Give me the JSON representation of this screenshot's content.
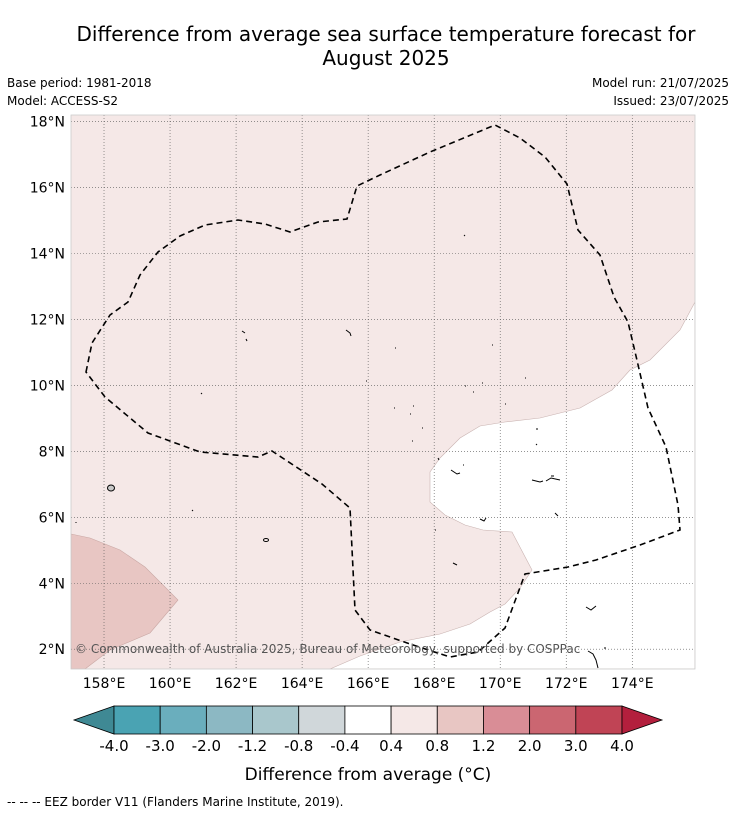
{
  "title": "Difference from average sea surface temperature forecast for August 2025",
  "title_lines": [
    "Difference from average sea surface temperature forecast for",
    "August 2025"
  ],
  "meta": {
    "base_period": "Base period: 1981-2018",
    "model": "Model: ACCESS-S2",
    "model_run": "Model run: 21/07/2025",
    "issued": "Issued: 23/07/2025"
  },
  "map": {
    "lon_range": [
      157,
      175.9
    ],
    "lat_range": [
      1.4,
      18.2
    ],
    "lat_ticks": [
      {
        "value": 18,
        "label": "18°N"
      },
      {
        "value": 16,
        "label": "16°N"
      },
      {
        "value": 14,
        "label": "14°N"
      },
      {
        "value": 12,
        "label": "12°N"
      },
      {
        "value": 10,
        "label": "10°N"
      },
      {
        "value": 8,
        "label": "8°N"
      },
      {
        "value": 6,
        "label": "6°N"
      },
      {
        "value": 4,
        "label": "4°N"
      },
      {
        "value": 2,
        "label": "2°N"
      }
    ],
    "lon_ticks": [
      {
        "value": 158,
        "label": "158°E"
      },
      {
        "value": 160,
        "label": "160°E"
      },
      {
        "value": 162,
        "label": "162°E"
      },
      {
        "value": 164,
        "label": "164°E"
      },
      {
        "value": 166,
        "label": "166°E"
      },
      {
        "value": 168,
        "label": "168°E"
      },
      {
        "value": 170,
        "label": "170°E"
      },
      {
        "value": 172,
        "label": "172°E"
      },
      {
        "value": 174,
        "label": "174°E"
      }
    ],
    "copyright": "© Commonwealth of Australia 2025, Bureau of Meteorology, supported by COSPPac",
    "colors": {
      "land_bg": "#ffffff",
      "band_0.4_0.8": "#f5e8e7",
      "band_0.8_1.2": "#e8c6c3",
      "band_-0.4_0.4": "#ffffff"
    }
  },
  "colorbar": {
    "labels": [
      "-4.0",
      "-3.0",
      "-2.0",
      "-1.2",
      "-0.8",
      "-0.4",
      "0.4",
      "0.8",
      "1.2",
      "2.0",
      "3.0",
      "4.0"
    ],
    "colors": [
      "#3f8994",
      "#4aa3b3",
      "#6aaebd",
      "#8cb8c3",
      "#a9c7cc",
      "#d0d7da",
      "#ffffff",
      "#f5e8e7",
      "#e8c6c3",
      "#d98d96",
      "#cb6671",
      "#c04455",
      "#b31f3d"
    ],
    "title": "Difference from average (°C)"
  },
  "footnote": "--  --  -- EEZ border V11 (Flanders Marine Institute, 2019)."
}
